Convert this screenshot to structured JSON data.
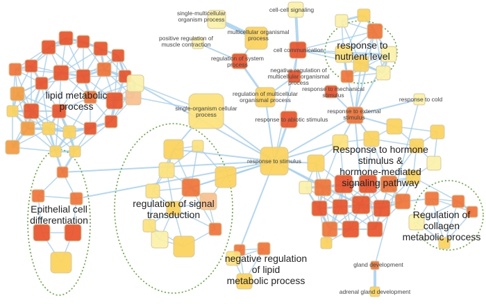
{
  "colors": {
    "edge": "#9fcdef",
    "ring": "#5aa832",
    "high": "#e8532a",
    "mid": "#f39a3c",
    "low": "#fbd35a",
    "pale": "#fbf1a8"
  },
  "small_labels": {
    "smop": [
      "single-multicellular",
      "organism process"
    ],
    "ccs": [
      "cell-cell signaling"
    ],
    "mop": [
      "multicellular organismal",
      "process"
    ],
    "prmc": [
      "positive regulation of",
      "muscle contraction"
    ],
    "rsp": [
      "regulation of system",
      "process"
    ],
    "cc": [
      "cell communication"
    ],
    "nrmop": [
      "negative regulation of",
      "multicellular organismal",
      "process"
    ],
    "rmop": [
      "regulation of multicellular",
      "organismal process"
    ],
    "socp": [
      "single-organism cellular",
      "process"
    ],
    "rms": [
      "response to mechanical",
      "stimulus"
    ],
    "ras": [
      "response to abiotic stimulus"
    ],
    "res": [
      "response to external",
      "stimulus"
    ],
    "rc": [
      "response to cold"
    ],
    "rs": [
      "response to stimulus"
    ],
    "gd": [
      "gland development"
    ],
    "agd": [
      "adrenal gland development"
    ]
  },
  "cluster_labels": {
    "lipid": [
      "lipid metabolic",
      "process"
    ],
    "epi": [
      "Epithelial cell",
      "differentiation"
    ],
    "sig": [
      "regulation of signal",
      "transduction"
    ],
    "neglipid": [
      "negative regulation",
      "of lipid",
      "metabolic process"
    ],
    "nutrient": [
      "response to",
      "nutrient level"
    ],
    "hormone": [
      "Response to hormone",
      "stimulus &",
      "hormone-mediated",
      "signaling pathway"
    ],
    "collagen": [
      "Regulation of",
      "collagen",
      "metabolic process"
    ]
  }
}
